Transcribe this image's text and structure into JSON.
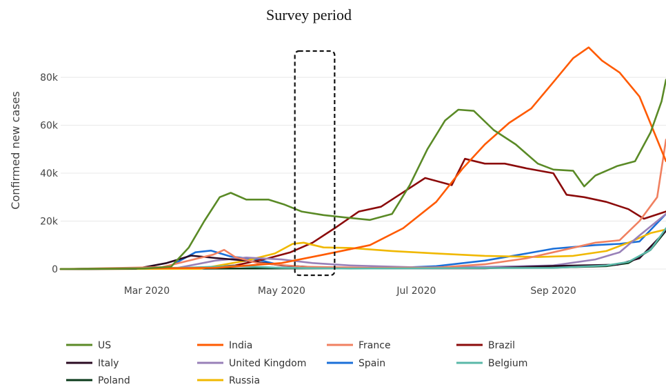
{
  "chart_data": {
    "type": "line",
    "title": "Survey period",
    "xlabel": "",
    "ylabel": "Confirmed new cases",
    "xlim": [
      "2020-01-22",
      "2020-10-22"
    ],
    "ylim": [
      0,
      95000
    ],
    "yticks": [
      0,
      20000,
      40000,
      60000,
      80000
    ],
    "ytick_labels": [
      "0",
      "20k",
      "40k",
      "60k",
      "80k"
    ],
    "xticks": [
      "2020-03-01",
      "2020-05-01",
      "2020-07-01",
      "2020-09-01"
    ],
    "xtick_labels": [
      "Mar 2020",
      "May 2020",
      "Jul 2020",
      "Sep 2020"
    ],
    "grid": true,
    "legend_position": "bottom",
    "annotation": {
      "type": "dashed-box",
      "x_range": [
        "2020-05-07",
        "2020-05-25"
      ],
      "label": "Survey period"
    },
    "series": [
      {
        "name": "US",
        "color": "#5a8a26",
        "points": [
          [
            "2020-01-22",
            0
          ],
          [
            "2020-02-29",
            200
          ],
          [
            "2020-03-12",
            1000
          ],
          [
            "2020-03-20",
            9000
          ],
          [
            "2020-03-27",
            20000
          ],
          [
            "2020-04-03",
            30000
          ],
          [
            "2020-04-08",
            31800
          ],
          [
            "2020-04-15",
            29000
          ],
          [
            "2020-04-25",
            29000
          ],
          [
            "2020-05-02",
            27000
          ],
          [
            "2020-05-10",
            24000
          ],
          [
            "2020-05-20",
            22500
          ],
          [
            "2020-05-30",
            21500
          ],
          [
            "2020-06-10",
            20500
          ],
          [
            "2020-06-20",
            23000
          ],
          [
            "2020-06-28",
            35000
          ],
          [
            "2020-07-06",
            50000
          ],
          [
            "2020-07-14",
            62000
          ],
          [
            "2020-07-20",
            66500
          ],
          [
            "2020-07-27",
            66000
          ],
          [
            "2020-08-05",
            58000
          ],
          [
            "2020-08-15",
            52000
          ],
          [
            "2020-08-25",
            44000
          ],
          [
            "2020-09-01",
            41500
          ],
          [
            "2020-09-10",
            41000
          ],
          [
            "2020-09-15",
            34500
          ],
          [
            "2020-09-20",
            39000
          ],
          [
            "2020-09-30",
            43000
          ],
          [
            "2020-10-08",
            45000
          ],
          [
            "2020-10-15",
            57000
          ],
          [
            "2020-10-20",
            70000
          ],
          [
            "2020-10-22",
            79000
          ]
        ]
      },
      {
        "name": "India",
        "color": "#ff5a00",
        "points": [
          [
            "2020-01-22",
            0
          ],
          [
            "2020-04-01",
            500
          ],
          [
            "2020-05-01",
            2500
          ],
          [
            "2020-05-20",
            6000
          ],
          [
            "2020-06-10",
            10000
          ],
          [
            "2020-06-25",
            17000
          ],
          [
            "2020-07-10",
            28000
          ],
          [
            "2020-07-22",
            42000
          ],
          [
            "2020-08-01",
            52000
          ],
          [
            "2020-08-12",
            61000
          ],
          [
            "2020-08-22",
            67000
          ],
          [
            "2020-09-01",
            78000
          ],
          [
            "2020-09-10",
            88000
          ],
          [
            "2020-09-17",
            92500
          ],
          [
            "2020-09-23",
            87000
          ],
          [
            "2020-10-01",
            82000
          ],
          [
            "2020-10-10",
            72000
          ],
          [
            "2020-10-22",
            45000
          ]
        ]
      },
      {
        "name": "France",
        "color": "#f08060",
        "points": [
          [
            "2020-01-22",
            0
          ],
          [
            "2020-03-08",
            800
          ],
          [
            "2020-03-31",
            6000
          ],
          [
            "2020-04-05",
            8000
          ],
          [
            "2020-04-10",
            5000
          ],
          [
            "2020-04-20",
            2500
          ],
          [
            "2020-05-10",
            1000
          ],
          [
            "2020-06-10",
            500
          ],
          [
            "2020-07-10",
            600
          ],
          [
            "2020-08-01",
            2000
          ],
          [
            "2020-08-20",
            4500
          ],
          [
            "2020-09-01",
            7000
          ],
          [
            "2020-09-20",
            11000
          ],
          [
            "2020-10-01",
            12000
          ],
          [
            "2020-10-10",
            20000
          ],
          [
            "2020-10-18",
            30000
          ],
          [
            "2020-10-22",
            54000
          ]
        ]
      },
      {
        "name": "Brazil",
        "color": "#8b0a0a",
        "points": [
          [
            "2020-01-22",
            0
          ],
          [
            "2020-03-20",
            300
          ],
          [
            "2020-04-10",
            1500
          ],
          [
            "2020-04-25",
            4500
          ],
          [
            "2020-05-05",
            7000
          ],
          [
            "2020-05-15",
            11000
          ],
          [
            "2020-05-25",
            17000
          ],
          [
            "2020-06-05",
            24000
          ],
          [
            "2020-06-15",
            26000
          ],
          [
            "2020-06-25",
            32000
          ],
          [
            "2020-07-05",
            38000
          ],
          [
            "2020-07-17",
            35000
          ],
          [
            "2020-07-23",
            46000
          ],
          [
            "2020-08-01",
            44000
          ],
          [
            "2020-08-10",
            44000
          ],
          [
            "2020-08-20",
            42000
          ],
          [
            "2020-09-01",
            40000
          ],
          [
            "2020-09-07",
            31000
          ],
          [
            "2020-09-15",
            30000
          ],
          [
            "2020-09-25",
            28000
          ],
          [
            "2020-10-05",
            25000
          ],
          [
            "2020-10-12",
            21000
          ],
          [
            "2020-10-22",
            24000
          ]
        ]
      },
      {
        "name": "Italy",
        "color": "#2a0a22",
        "points": [
          [
            "2020-01-22",
            0
          ],
          [
            "2020-02-25",
            100
          ],
          [
            "2020-03-10",
            2500
          ],
          [
            "2020-03-21",
            5600
          ],
          [
            "2020-04-01",
            4600
          ],
          [
            "2020-04-15",
            3500
          ],
          [
            "2020-05-01",
            1500
          ],
          [
            "2020-05-15",
            800
          ],
          [
            "2020-06-15",
            300
          ],
          [
            "2020-08-01",
            300
          ],
          [
            "2020-09-01",
            1300
          ],
          [
            "2020-09-30",
            1800
          ],
          [
            "2020-10-10",
            4500
          ],
          [
            "2020-10-22",
            16000
          ]
        ]
      },
      {
        "name": "United Kingdom",
        "color": "#9880b8",
        "points": [
          [
            "2020-01-22",
            0
          ],
          [
            "2020-03-15",
            500
          ],
          [
            "2020-04-01",
            3500
          ],
          [
            "2020-04-15",
            4800
          ],
          [
            "2020-05-01",
            4000
          ],
          [
            "2020-05-15",
            2500
          ],
          [
            "2020-06-01",
            1500
          ],
          [
            "2020-07-01",
            700
          ],
          [
            "2020-08-01",
            900
          ],
          [
            "2020-09-01",
            1500
          ],
          [
            "2020-09-20",
            4000
          ],
          [
            "2020-10-01",
            7000
          ],
          [
            "2020-10-10",
            14000
          ],
          [
            "2020-10-22",
            23000
          ]
        ]
      },
      {
        "name": "Spain",
        "color": "#1a6fd8",
        "points": [
          [
            "2020-01-22",
            0
          ],
          [
            "2020-03-10",
            500
          ],
          [
            "2020-03-23",
            7000
          ],
          [
            "2020-03-30",
            7700
          ],
          [
            "2020-04-08",
            5200
          ],
          [
            "2020-04-20",
            4000
          ],
          [
            "2020-05-01",
            1500
          ],
          [
            "2020-05-20",
            500
          ],
          [
            "2020-06-20",
            400
          ],
          [
            "2020-07-10",
            1200
          ],
          [
            "2020-08-01",
            3500
          ],
          [
            "2020-08-20",
            6500
          ],
          [
            "2020-09-01",
            8500
          ],
          [
            "2020-09-20",
            10000
          ],
          [
            "2020-10-01",
            10500
          ],
          [
            "2020-10-10",
            11500
          ],
          [
            "2020-10-22",
            23000
          ]
        ]
      },
      {
        "name": "Belgium",
        "color": "#5ab8a8",
        "points": [
          [
            "2020-01-22",
            0
          ],
          [
            "2020-03-20",
            600
          ],
          [
            "2020-04-10",
            1300
          ],
          [
            "2020-05-01",
            500
          ],
          [
            "2020-06-01",
            200
          ],
          [
            "2020-08-01",
            400
          ],
          [
            "2020-09-01",
            500
          ],
          [
            "2020-09-25",
            1500
          ],
          [
            "2020-10-05",
            3000
          ],
          [
            "2020-10-15",
            8000
          ],
          [
            "2020-10-22",
            17000
          ]
        ]
      },
      {
        "name": "Poland",
        "color": "#0a3a1a",
        "points": [
          [
            "2020-01-22",
            0
          ],
          [
            "2020-04-01",
            200
          ],
          [
            "2020-06-01",
            300
          ],
          [
            "2020-08-01",
            500
          ],
          [
            "2020-09-01",
            600
          ],
          [
            "2020-09-25",
            1200
          ],
          [
            "2020-10-05",
            2500
          ],
          [
            "2020-10-15",
            8000
          ],
          [
            "2020-10-22",
            16000
          ]
        ]
      },
      {
        "name": "Russia",
        "color": "#f0b800",
        "points": [
          [
            "2020-01-22",
            0
          ],
          [
            "2020-03-25",
            100
          ],
          [
            "2020-04-15",
            3500
          ],
          [
            "2020-04-28",
            6500
          ],
          [
            "2020-05-06",
            10500
          ],
          [
            "2020-05-11",
            11000
          ],
          [
            "2020-05-20",
            9000
          ],
          [
            "2020-06-01",
            8800
          ],
          [
            "2020-06-20",
            7500
          ],
          [
            "2020-07-10",
            6500
          ],
          [
            "2020-08-01",
            5500
          ],
          [
            "2020-08-25",
            5000
          ],
          [
            "2020-09-10",
            5500
          ],
          [
            "2020-09-25",
            7500
          ],
          [
            "2020-10-05",
            11000
          ],
          [
            "2020-10-15",
            15000
          ],
          [
            "2020-10-22",
            16500
          ]
        ]
      }
    ]
  }
}
